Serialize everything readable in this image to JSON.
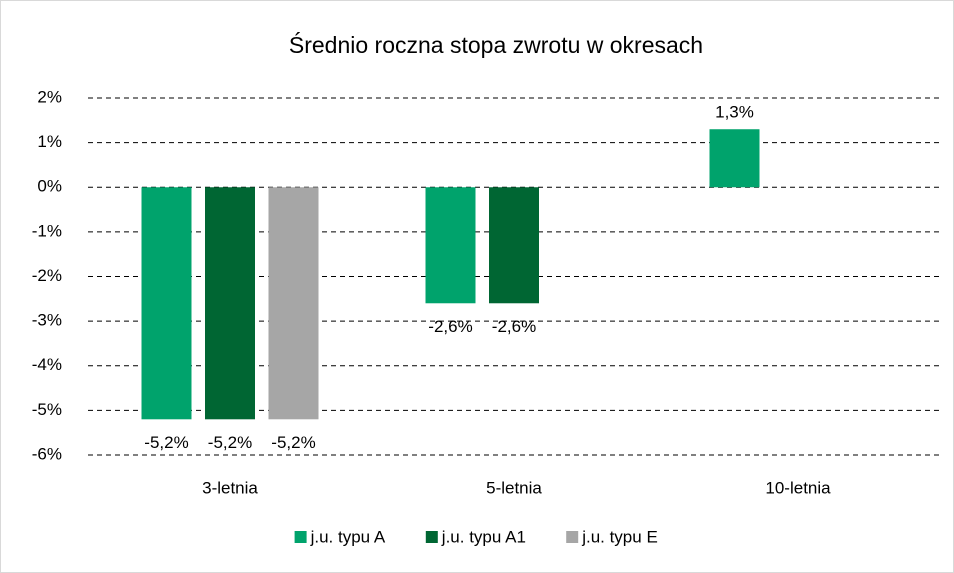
{
  "chart_data": {
    "type": "bar",
    "title": "Średnio roczna stopa zwrotu w okresach",
    "categories": [
      "3-letnia",
      "5-letnia",
      "10-letnia"
    ],
    "series": [
      {
        "name": "j.u. typu A",
        "color": "#00a36c",
        "values": [
          -5.2,
          -2.6,
          1.3
        ],
        "value_labels": [
          "-5,2%",
          "-2,6%",
          "1,3%"
        ]
      },
      {
        "name": "j.u. typu A1",
        "color": "#006633",
        "values": [
          -5.2,
          -2.6,
          null
        ],
        "value_labels": [
          "-5,2%",
          "-2,6%",
          null
        ]
      },
      {
        "name": "j.u. typu E",
        "color": "#a6a6a6",
        "values": [
          -5.2,
          null,
          null
        ],
        "value_labels": [
          "-5,2%",
          null,
          null
        ]
      }
    ],
    "ylim": [
      -6,
      2
    ],
    "yticks": [
      {
        "value": -6,
        "label": "-6%"
      },
      {
        "value": -5,
        "label": "-5%"
      },
      {
        "value": -4,
        "label": "-4%"
      },
      {
        "value": -3,
        "label": "-3%"
      },
      {
        "value": -2,
        "label": "-2%"
      },
      {
        "value": -1,
        "label": "-1%"
      },
      {
        "value": 0,
        "label": "0%"
      },
      {
        "value": 1,
        "label": "1%"
      },
      {
        "value": 2,
        "label": "2%"
      }
    ],
    "grid": true,
    "legend": "bottom"
  }
}
